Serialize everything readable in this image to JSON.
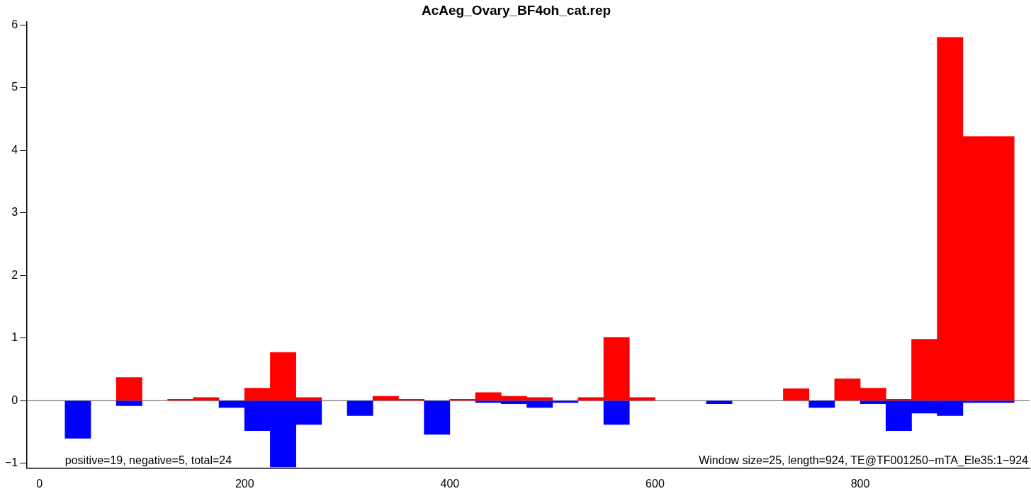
{
  "chart_data": {
    "type": "histogram",
    "title": "AcAeg_Ovary_BF4oh_cat.rep",
    "bins": [
      25,
      50,
      75,
      100,
      125,
      150,
      175,
      200,
      225,
      250,
      275,
      300,
      325,
      350,
      375,
      400,
      425,
      450,
      475,
      500,
      525,
      550,
      575,
      600,
      625,
      650,
      675,
      700,
      725,
      750,
      775,
      800,
      825,
      850,
      875,
      900,
      925,
      950
    ],
    "series": [
      {
        "color": "#ff0000",
        "values": [
          null,
          null,
          0.37,
          null,
          0.02,
          0.05,
          null,
          0.2,
          0.77,
          0.05,
          null,
          null,
          0.07,
          0.02,
          null,
          0.02,
          0.13,
          0.07,
          0.05,
          null,
          0.05,
          1.01,
          0.05,
          null,
          null,
          null,
          null,
          null,
          0.19,
          null,
          0.35,
          0.2,
          0.02,
          0.98,
          5.8,
          4.22,
          4.22
        ]
      },
      {
        "color": "#0000ff",
        "values": [
          -0.6,
          null,
          -0.08,
          null,
          null,
          null,
          -0.11,
          -0.48,
          -1.06,
          -0.38,
          null,
          -0.24,
          null,
          null,
          -0.54,
          null,
          -0.03,
          -0.05,
          -0.11,
          -0.03,
          null,
          -0.38,
          null,
          null,
          null,
          -0.05,
          null,
          null,
          null,
          -0.11,
          null,
          -0.05,
          -0.48,
          -0.2,
          -0.24,
          -0.03,
          -0.03
        ]
      }
    ],
    "xlim": [
      -12,
      965
    ],
    "xticks": [
      0,
      200,
      400,
      600,
      800
    ],
    "ylim": [
      -1.08,
      6.05
    ],
    "yticks": [
      {
        "value": -1,
        "label": "−1"
      },
      0,
      1,
      2,
      3,
      4,
      5,
      6
    ],
    "ref_lines": [
      {
        "axis": "y",
        "value": 0,
        "color": "#555555"
      }
    ],
    "annotations": [
      "positive=19, negative=5, total=24",
      "Window size=25, length=924, TE@TF001250−mTA_Ele35:1−924"
    ],
    "grid": false,
    "legend": false
  }
}
